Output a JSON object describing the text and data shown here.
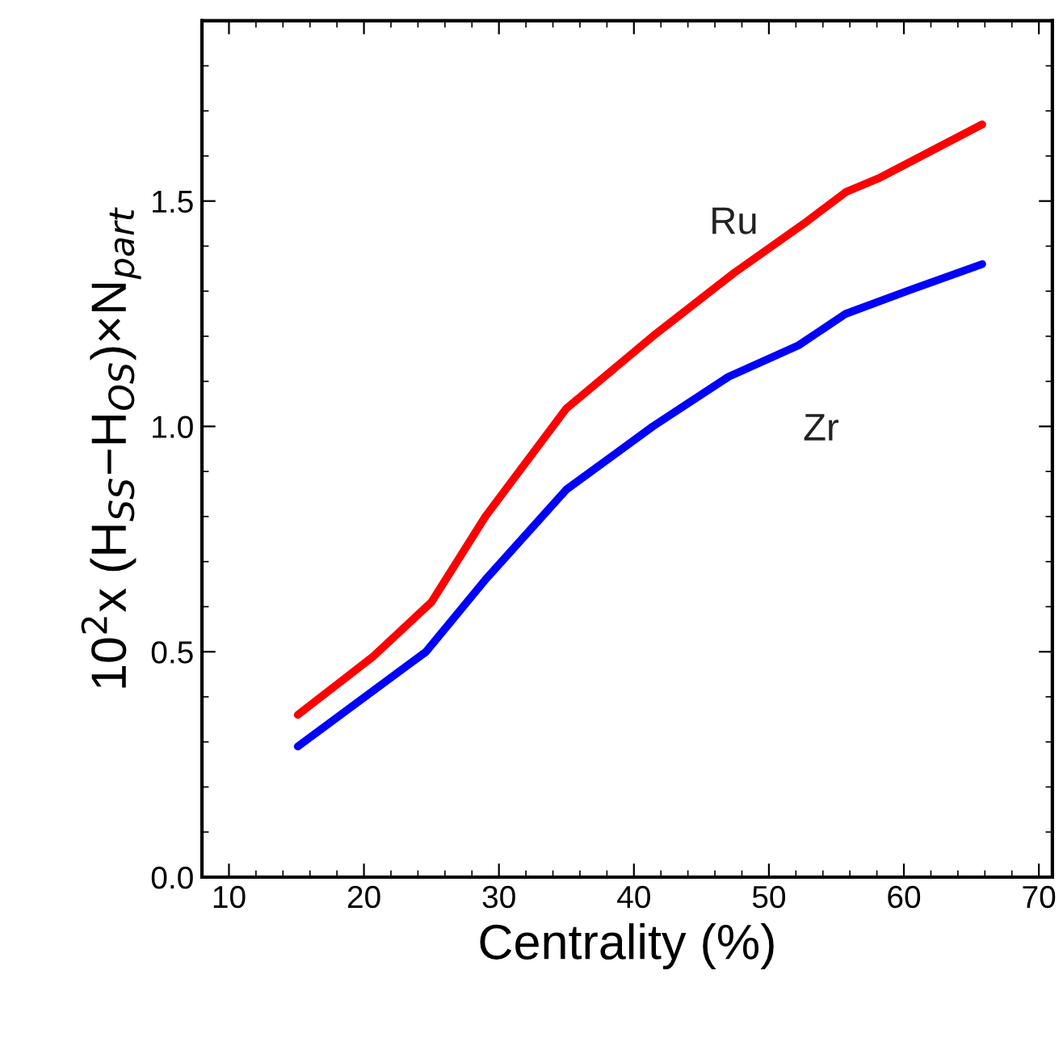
{
  "chart_data": {
    "type": "line",
    "xlabel": "Centrality (%)",
    "ylabel": "10$^{2}$x (H$_{SS}$−H$_{OS}$)×N$_{part}$",
    "xlim": [
      8,
      71
    ],
    "ylim": [
      0,
      1.9
    ],
    "xticks": [
      10,
      20,
      30,
      40,
      50,
      60,
      70
    ],
    "yticks": [
      {
        "value": 0,
        "label": "0.0"
      },
      0.5,
      {
        "value": 1,
        "label": "1.0"
      },
      1.5
    ],
    "grid": false,
    "legend": false,
    "marker": "none",
    "line_style": "solid",
    "series": [
      {
        "name": "Ru",
        "color": "#ff0000",
        "x": [
          15.1,
          20.7,
          25.0,
          29.0,
          35.0,
          41.4,
          47.4,
          52.6,
          55.7,
          58.1,
          65.8
        ],
        "values": [
          0.36,
          0.49,
          0.61,
          0.8,
          1.04,
          1.2,
          1.34,
          1.45,
          1.52,
          1.55,
          1.67
        ]
      },
      {
        "name": "Zr",
        "color": "#0000ff",
        "x": [
          15.1,
          24.6,
          29.0,
          35.0,
          41.4,
          47.0,
          52.2,
          55.7,
          60.2,
          65.8
        ],
        "values": [
          0.29,
          0.5,
          0.66,
          0.86,
          1.0,
          1.11,
          1.18,
          1.25,
          1.3,
          1.36
        ]
      }
    ]
  }
}
